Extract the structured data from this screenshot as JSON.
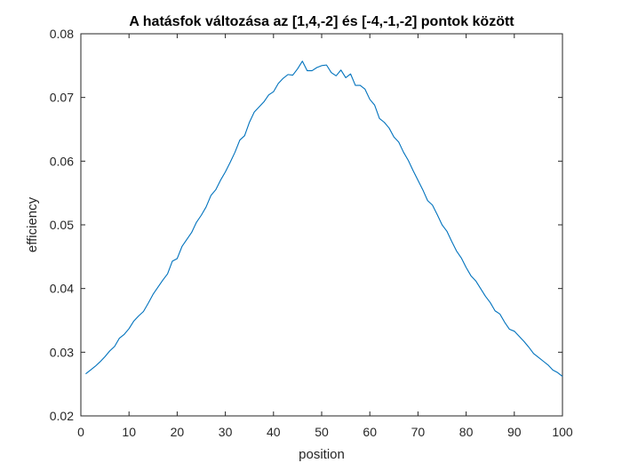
{
  "chart_data": {
    "type": "line",
    "title": "A hatásfok változása az [1,4,-2] és [-4,-1,-2] pontok között",
    "xlabel": "position",
    "ylabel": "efficiency",
    "xlim": [
      0,
      100
    ],
    "ylim": [
      0.02,
      0.08
    ],
    "x_ticks": [
      0,
      10,
      20,
      30,
      40,
      50,
      60,
      70,
      80,
      90,
      100
    ],
    "y_ticks": [
      0.02,
      0.03,
      0.04,
      0.05,
      0.06,
      0.07,
      0.08
    ],
    "x_tick_labels": [
      "0",
      "10",
      "20",
      "30",
      "40",
      "50",
      "60",
      "70",
      "80",
      "90",
      "100"
    ],
    "y_tick_labels": [
      "0.02",
      "0.03",
      "0.04",
      "0.05",
      "0.06",
      "0.07",
      "0.08"
    ],
    "grid": false,
    "legend": "none",
    "series": [
      {
        "color": "#0072BD",
        "x": [
          1,
          2,
          3,
          4,
          5,
          6,
          7,
          8,
          9,
          10,
          11,
          12,
          13,
          14,
          15,
          16,
          17,
          18,
          19,
          20,
          21,
          22,
          23,
          24,
          25,
          26,
          27,
          28,
          29,
          30,
          31,
          32,
          33,
          34,
          35,
          36,
          37,
          38,
          39,
          40,
          41,
          42,
          43,
          44,
          45,
          46,
          47,
          48,
          49,
          50,
          51,
          52,
          53,
          54,
          55,
          56,
          57,
          58,
          59,
          60,
          61,
          62,
          63,
          64,
          65,
          66,
          67,
          68,
          69,
          70,
          71,
          72,
          73,
          74,
          75,
          76,
          77,
          78,
          79,
          80,
          81,
          82,
          83,
          84,
          85,
          86,
          87,
          88,
          89,
          90,
          91,
          92,
          93,
          94,
          95,
          96,
          97,
          98,
          99,
          100
        ],
        "values": [
          0.0266,
          0.0272,
          0.0278,
          0.0285,
          0.0293,
          0.0302,
          0.0309,
          0.0322,
          0.0328,
          0.0337,
          0.0349,
          0.0357,
          0.0364,
          0.0377,
          0.0391,
          0.0402,
          0.0413,
          0.0423,
          0.0443,
          0.0447,
          0.0466,
          0.0477,
          0.0488,
          0.0504,
          0.0515,
          0.0528,
          0.0546,
          0.0555,
          0.057,
          0.0583,
          0.0598,
          0.0614,
          0.0633,
          0.064,
          0.0661,
          0.0677,
          0.0685,
          0.0693,
          0.0704,
          0.0709,
          0.0722,
          0.073,
          0.0736,
          0.0735,
          0.0745,
          0.0757,
          0.0742,
          0.0742,
          0.0747,
          0.075,
          0.0751,
          0.0739,
          0.0734,
          0.0743,
          0.0731,
          0.0737,
          0.0719,
          0.0719,
          0.0713,
          0.0697,
          0.0688,
          0.0667,
          0.0661,
          0.0652,
          0.0638,
          0.063,
          0.0614,
          0.0601,
          0.0585,
          0.057,
          0.0555,
          0.0538,
          0.0531,
          0.0516,
          0.05,
          0.049,
          0.0474,
          0.0459,
          0.0448,
          0.0433,
          0.042,
          0.0412,
          0.04,
          0.0388,
          0.0378,
          0.0365,
          0.036,
          0.0347,
          0.0336,
          0.0333,
          0.0325,
          0.0317,
          0.0308,
          0.0298,
          0.0292,
          0.0286,
          0.028,
          0.0272,
          0.0268,
          0.0262
        ]
      }
    ]
  }
}
